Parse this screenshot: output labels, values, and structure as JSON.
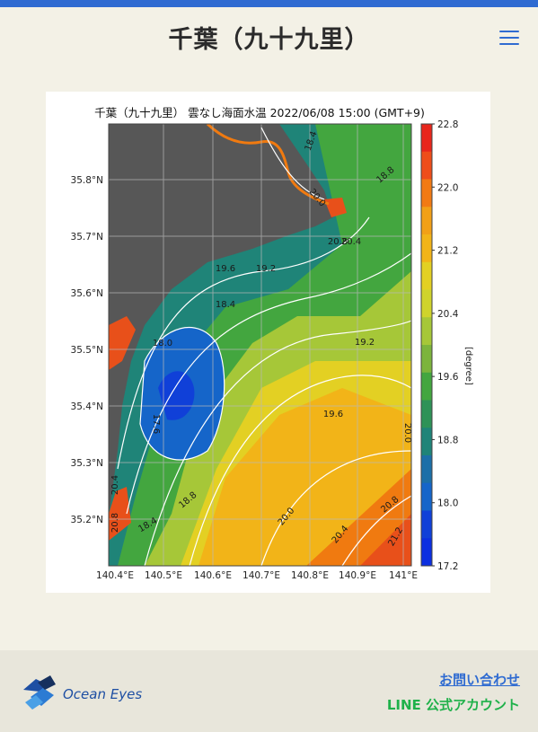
{
  "header": {
    "title": "千葉（九十九里）"
  },
  "chart_data": {
    "type": "heatmap",
    "title": "千葉（九十九里） 雲なし海面水温 2022/06/08 15:00 (GMT+9)",
    "xticks": [
      "140.4°E",
      "140.5°E",
      "140.6°E",
      "140.7°E",
      "140.8°E",
      "140.9°E",
      "141°E"
    ],
    "yticks": [
      "35.8°N",
      "35.7°N",
      "35.6°N",
      "35.5°N",
      "35.4°N",
      "35.3°N",
      "35.2°N"
    ],
    "colorbar": {
      "label": "[degree]",
      "ticks": [
        "22.8",
        "22.0",
        "21.2",
        "20.4",
        "19.6",
        "18.8",
        "18.0",
        "17.2"
      ],
      "range": [
        17.2,
        22.8
      ]
    },
    "contour_labels": [
      "18.4",
      "18.8",
      "20.0",
      "20.8",
      "20.4",
      "19.6",
      "19.2",
      "18.4",
      "18.0",
      "19.2",
      "17.6",
      "19.6",
      "20.0",
      "20.4",
      "18.8",
      "20.0",
      "20.4",
      "20.8",
      "21.2",
      "20.8",
      "18.4"
    ],
    "land_color": "#575757",
    "grid": true
  },
  "footer": {
    "logo_text": "Ocean Eyes",
    "contact_label": "お問い合わせ",
    "line_label": "LINE 公式アカウント"
  },
  "colors": {
    "accent": "#2f6bd1",
    "line_green": "#1fb14a",
    "background": "#f3f1e6"
  }
}
